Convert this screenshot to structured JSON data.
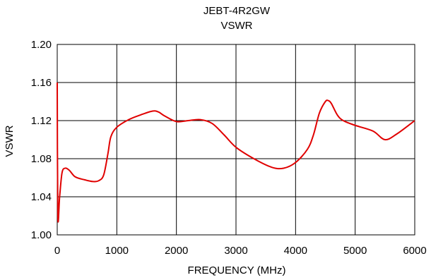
{
  "chart_data": {
    "type": "line",
    "title": "JEBT-4R2GW",
    "subtitle": "VSWR",
    "xlabel": "FREQUENCY (MHz)",
    "ylabel": "VSWR",
    "xlim": [
      0,
      6000
    ],
    "ylim": [
      1.0,
      1.2
    ],
    "xticks": [
      "0",
      "1000",
      "2000",
      "3000",
      "4000",
      "5000",
      "6000"
    ],
    "yticks": [
      "1.00",
      "1.04",
      "1.08",
      "1.12",
      "1.16",
      "1.20"
    ],
    "grid": true,
    "color": "#e00000",
    "series": [
      {
        "x": [
          0,
          10,
          40,
          80,
          130,
          200,
          300,
          450,
          600,
          700,
          780,
          850,
          900,
          1000,
          1200,
          1400,
          1600,
          1700,
          1800,
          2000,
          2200,
          2400,
          2600,
          2800,
          3000,
          3300,
          3600,
          3800,
          4000,
          4200,
          4300,
          4400,
          4500,
          4550,
          4600,
          4700,
          4800,
          5000,
          5300,
          5500,
          5700,
          6000
        ],
        "y": [
          1.16,
          1.02,
          1.04,
          1.065,
          1.07,
          1.068,
          1.061,
          1.058,
          1.056,
          1.057,
          1.063,
          1.085,
          1.103,
          1.113,
          1.121,
          1.126,
          1.13,
          1.129,
          1.125,
          1.119,
          1.12,
          1.121,
          1.117,
          1.105,
          1.092,
          1.08,
          1.071,
          1.07,
          1.076,
          1.09,
          1.105,
          1.128,
          1.14,
          1.141,
          1.138,
          1.126,
          1.12,
          1.115,
          1.109,
          1.1,
          1.106,
          1.12
        ]
      }
    ]
  }
}
